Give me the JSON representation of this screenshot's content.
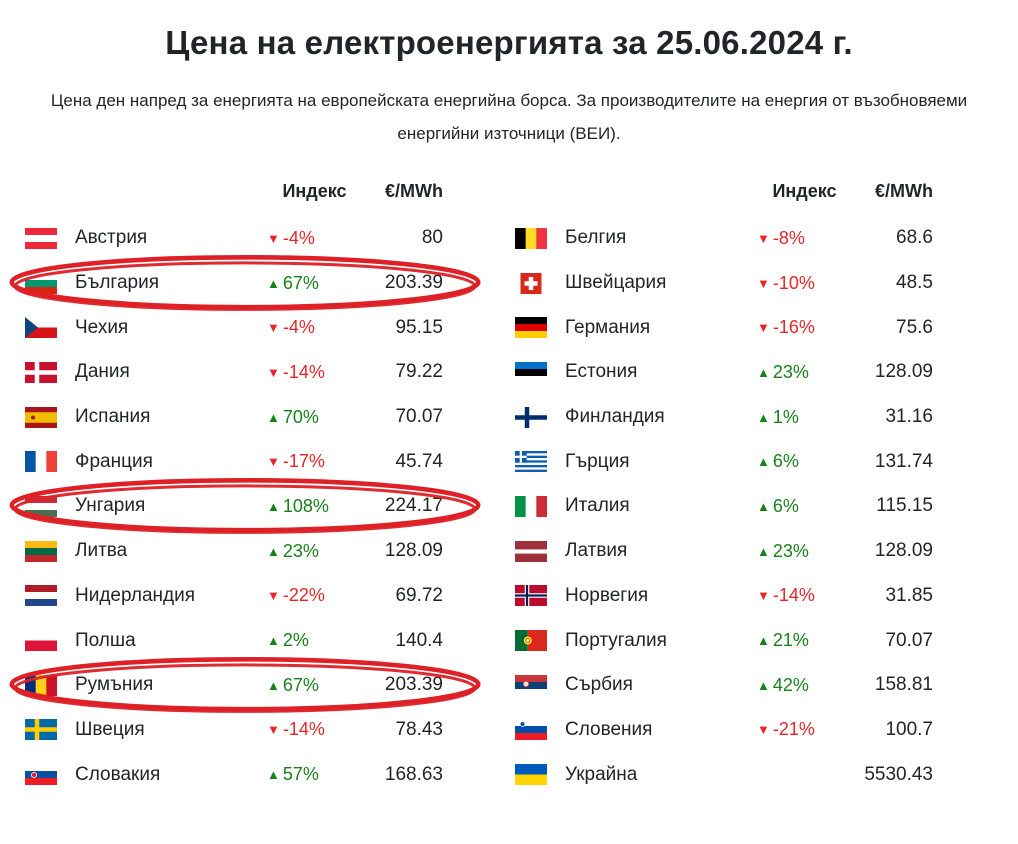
{
  "page": {
    "title": "Цена на електроенергията за 25.06.2024 г.",
    "subtitle": "Цена ден напред за енергията на европейската енергийна борса. За производителите на енергия от възобновяеми енергийни източници (ВЕИ)."
  },
  "table": {
    "headers": {
      "index": "Индекс",
      "price": "€/MWh"
    },
    "left": [
      {
        "country": "Австрия",
        "flag": "austria",
        "direction": "down",
        "index": "-4%",
        "price": "80",
        "highlighted": false
      },
      {
        "country": "България",
        "flag": "bulgaria",
        "direction": "up",
        "index": "67%",
        "price": "203.39",
        "highlighted": true
      },
      {
        "country": "Чехия",
        "flag": "czechia",
        "direction": "down",
        "index": "-4%",
        "price": "95.15",
        "highlighted": false
      },
      {
        "country": "Дания",
        "flag": "denmark",
        "direction": "down",
        "index": "-14%",
        "price": "79.22",
        "highlighted": false
      },
      {
        "country": "Испания",
        "flag": "spain",
        "direction": "up",
        "index": "70%",
        "price": "70.07",
        "highlighted": false
      },
      {
        "country": "Франция",
        "flag": "france",
        "direction": "down",
        "index": "-17%",
        "price": "45.74",
        "highlighted": false
      },
      {
        "country": "Унгария",
        "flag": "hungary",
        "direction": "up",
        "index": "108%",
        "price": "224.17",
        "highlighted": true
      },
      {
        "country": "Литва",
        "flag": "lithuania",
        "direction": "up",
        "index": "23%",
        "price": "128.09",
        "highlighted": false
      },
      {
        "country": "Нидерландия",
        "flag": "netherlands",
        "direction": "down",
        "index": "-22%",
        "price": "69.72",
        "highlighted": false
      },
      {
        "country": "Полша",
        "flag": "poland",
        "direction": "up",
        "index": "2%",
        "price": "140.4",
        "highlighted": false
      },
      {
        "country": "Румъния",
        "flag": "romania",
        "direction": "up",
        "index": "67%",
        "price": "203.39",
        "highlighted": true
      },
      {
        "country": "Швеция",
        "flag": "sweden",
        "direction": "down",
        "index": "-14%",
        "price": "78.43",
        "highlighted": false
      },
      {
        "country": "Словакия",
        "flag": "slovakia",
        "direction": "up",
        "index": "57%",
        "price": "168.63",
        "highlighted": false
      }
    ],
    "right": [
      {
        "country": "Белгия",
        "flag": "belgium",
        "direction": "down",
        "index": "-8%",
        "price": "68.6",
        "highlighted": false
      },
      {
        "country": "Швейцария",
        "flag": "switzerland",
        "direction": "down",
        "index": "-10%",
        "price": "48.5",
        "highlighted": false
      },
      {
        "country": "Германия",
        "flag": "germany",
        "direction": "down",
        "index": "-16%",
        "price": "75.6",
        "highlighted": false
      },
      {
        "country": "Естония",
        "flag": "estonia",
        "direction": "up",
        "index": "23%",
        "price": "128.09",
        "highlighted": false
      },
      {
        "country": "Финландия",
        "flag": "finland",
        "direction": "up",
        "index": "1%",
        "price": "31.16",
        "highlighted": false
      },
      {
        "country": "Гърция",
        "flag": "greece",
        "direction": "up",
        "index": "6%",
        "price": "131.74",
        "highlighted": false
      },
      {
        "country": "Италия",
        "flag": "italy",
        "direction": "up",
        "index": "6%",
        "price": "115.15",
        "highlighted": false
      },
      {
        "country": "Латвия",
        "flag": "latvia",
        "direction": "up",
        "index": "23%",
        "price": "128.09",
        "highlighted": false
      },
      {
        "country": "Норвегия",
        "flag": "norway",
        "direction": "down",
        "index": "-14%",
        "price": "31.85",
        "highlighted": false
      },
      {
        "country": "Португалия",
        "flag": "portugal",
        "direction": "up",
        "index": "21%",
        "price": "70.07",
        "highlighted": false
      },
      {
        "country": "Сърбия",
        "flag": "serbia",
        "direction": "up",
        "index": "42%",
        "price": "158.81",
        "highlighted": false
      },
      {
        "country": "Словения",
        "flag": "slovenia",
        "direction": "down",
        "index": "-21%",
        "price": "100.7",
        "highlighted": false
      },
      {
        "country": "Украйна",
        "flag": "ukraine",
        "direction": null,
        "index": null,
        "price": "5530.43",
        "highlighted": false
      }
    ]
  },
  "icons": {
    "up_triangle": "▲",
    "down_triangle": "▼"
  },
  "colors": {
    "text": "#212529",
    "up": "#17821a",
    "down": "#e8262a",
    "highlight_circle": "#dd2127"
  }
}
